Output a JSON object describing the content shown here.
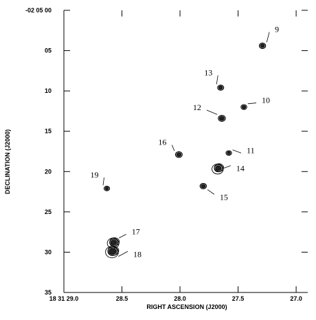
{
  "chart_data": {
    "type": "scatter",
    "title": "",
    "xlabel": "RIGHT ASCENSION (J2000)",
    "ylabel": "DECLINATION (J2000)",
    "xlim": [
      29.0,
      26.9
    ],
    "ylim": [
      35,
      0
    ],
    "x_ticks": [
      {
        "value": 29.0,
        "label": "18 31 29.0"
      },
      {
        "value": 28.5,
        "label": "28.5"
      },
      {
        "value": 28.0,
        "label": "28.0"
      },
      {
        "value": 27.5,
        "label": "27.5"
      },
      {
        "value": 27.0,
        "label": "27.0"
      }
    ],
    "y_ticks": [
      {
        "value": 0,
        "label": "-02 05 00"
      },
      {
        "value": 5,
        "label": "05"
      },
      {
        "value": 10,
        "label": "10"
      },
      {
        "value": 15,
        "label": "15"
      },
      {
        "value": 20,
        "label": "20"
      },
      {
        "value": 25,
        "label": "25"
      },
      {
        "value": 30,
        "label": "30"
      },
      {
        "value": 35,
        "label": "35"
      }
    ],
    "grid": false,
    "sources": [
      {
        "id": "9",
        "ra": 27.29,
        "dec": 4.4,
        "size": 1.0
      },
      {
        "id": "10",
        "ra": 27.45,
        "dec": 12.0,
        "size": 0.8
      },
      {
        "id": "11",
        "ra": 27.58,
        "dec": 17.7,
        "size": 0.7
      },
      {
        "id": "12",
        "ra": 27.64,
        "dec": 13.4,
        "size": 1.2
      },
      {
        "id": "13",
        "ra": 27.65,
        "dec": 9.6,
        "size": 0.9
      },
      {
        "id": "14",
        "ra": 27.67,
        "dec": 19.6,
        "size": 1.5
      },
      {
        "id": "15",
        "ra": 27.8,
        "dec": 21.8,
        "size": 1.0
      },
      {
        "id": "16",
        "ra": 28.01,
        "dec": 17.9,
        "size": 1.1
      },
      {
        "id": "17",
        "ra": 28.57,
        "dec": 28.8,
        "size": 1.6
      },
      {
        "id": "18",
        "ra": 28.58,
        "dec": 29.9,
        "size": 2.0
      },
      {
        "id": "19",
        "ra": 28.63,
        "dec": 22.1,
        "size": 0.7
      }
    ]
  }
}
